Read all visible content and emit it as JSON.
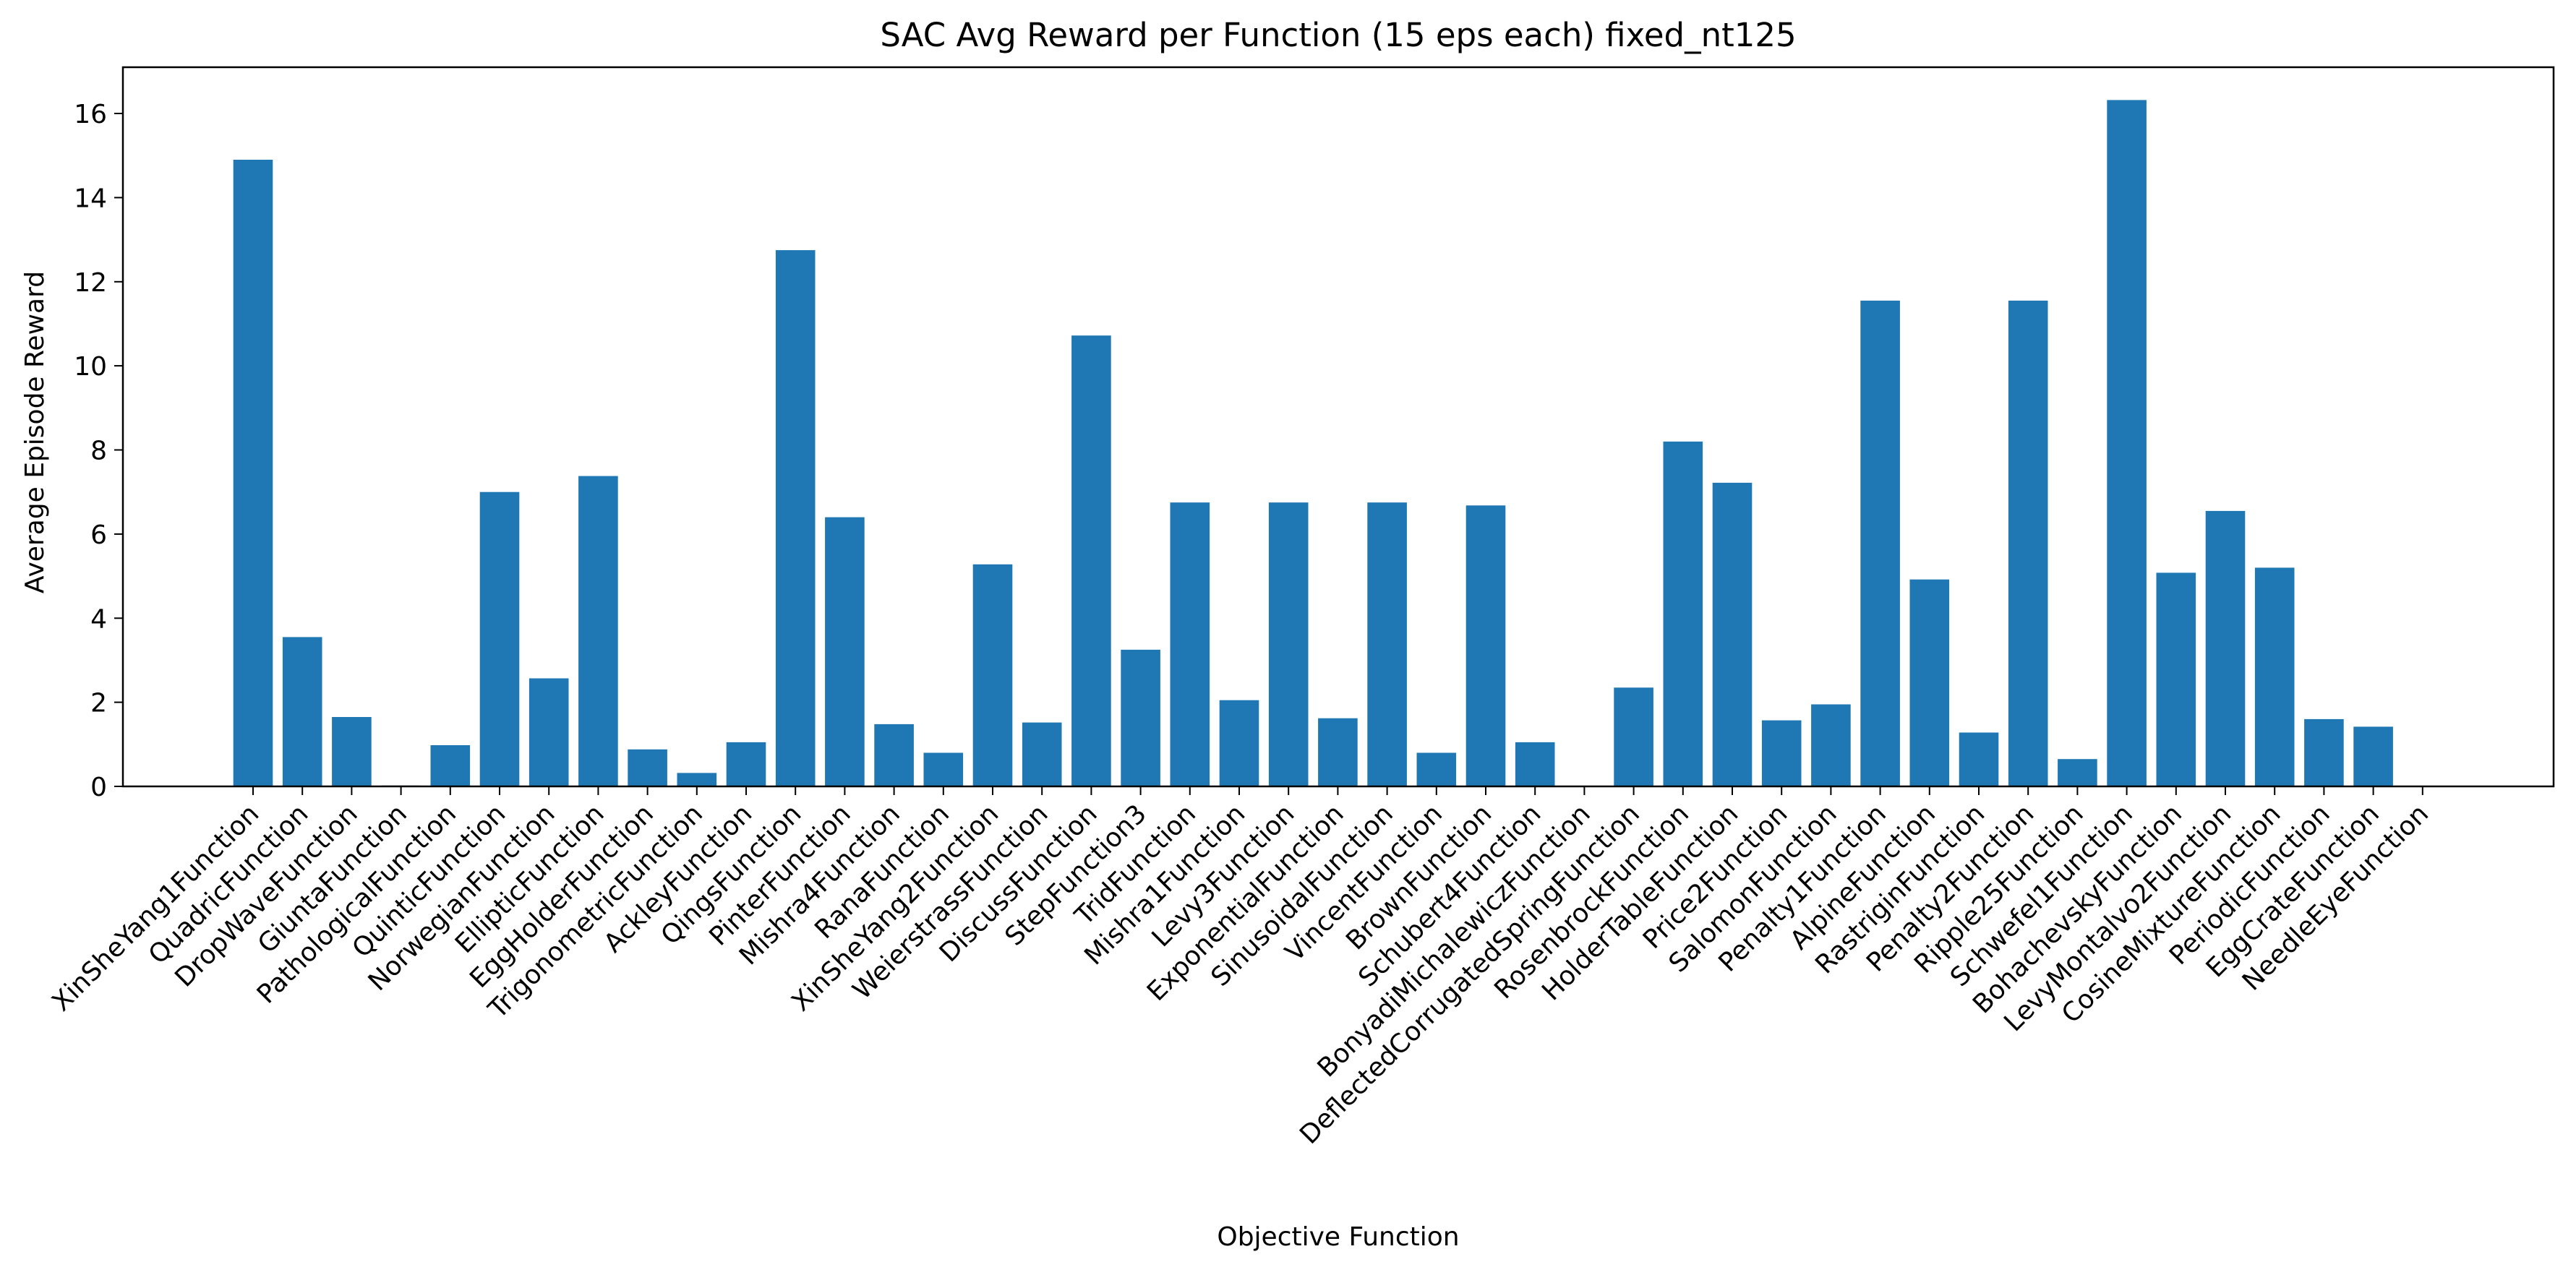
{
  "chart_data": {
    "type": "bar",
    "title": "SAC Avg Reward per Function (15 eps each) fixed_nt125",
    "xlabel": "Objective Function",
    "ylabel": "Average Episode Reward",
    "ylim": [
      0,
      17.1
    ],
    "yticks": [
      0,
      2,
      4,
      6,
      8,
      10,
      12,
      14,
      16
    ],
    "grid": false,
    "legend": "none",
    "bar_color": "#1f77b4",
    "categories": [
      "XinSheYang1Function",
      "QuadricFunction",
      "DropWaveFunction",
      "GiuntaFunction",
      "PathologicalFunction",
      "QuinticFunction",
      "NorwegianFunction",
      "EllipticFunction",
      "EggHolderFunction",
      "TrigonometricFunction",
      "AckleyFunction",
      "QingsFunction",
      "PinterFunction",
      "Mishra4Function",
      "RanaFunction",
      "XinSheYang2Function",
      "WeierstrassFunction",
      "DiscussFunction",
      "StepFunction3",
      "TridFunction",
      "Mishra1Function",
      "Levy3Function",
      "ExponentialFunction",
      "SinusoidalFunction",
      "VincentFunction",
      "BrownFunction",
      "Schubert4Function",
      "BonyadiMichalewiczFunction",
      "DeflectedCorrugatedSpringFunction",
      "RosenbrockFunction",
      "HolderTableFunction",
      "Price2Function",
      "SalomonFunction",
      "Penalty1Function",
      "AlpineFunction",
      "RastriginFunction",
      "Penalty2Function",
      "Ripple25Function",
      "Schwefel1Function",
      "BohachevskyFunction",
      "LevyMontalvo2Function",
      "CosineMixtureFunction",
      "PeriodicFunction",
      "EggCrateFunction",
      "NeedleEyeFunction"
    ],
    "values": [
      14.9,
      3.55,
      1.65,
      0.02,
      0.98,
      7.0,
      2.57,
      7.38,
      0.88,
      0.32,
      1.05,
      12.75,
      6.4,
      1.48,
      0.8,
      5.28,
      1.52,
      10.72,
      3.25,
      6.75,
      2.05,
      6.75,
      1.62,
      6.75,
      0.8,
      6.68,
      1.05,
      0.0,
      2.35,
      8.2,
      7.22,
      1.57,
      1.95,
      11.55,
      4.92,
      1.28,
      11.55,
      0.65,
      16.32,
      5.08,
      6.55,
      5.2,
      1.6,
      1.42,
      0.0
    ]
  }
}
